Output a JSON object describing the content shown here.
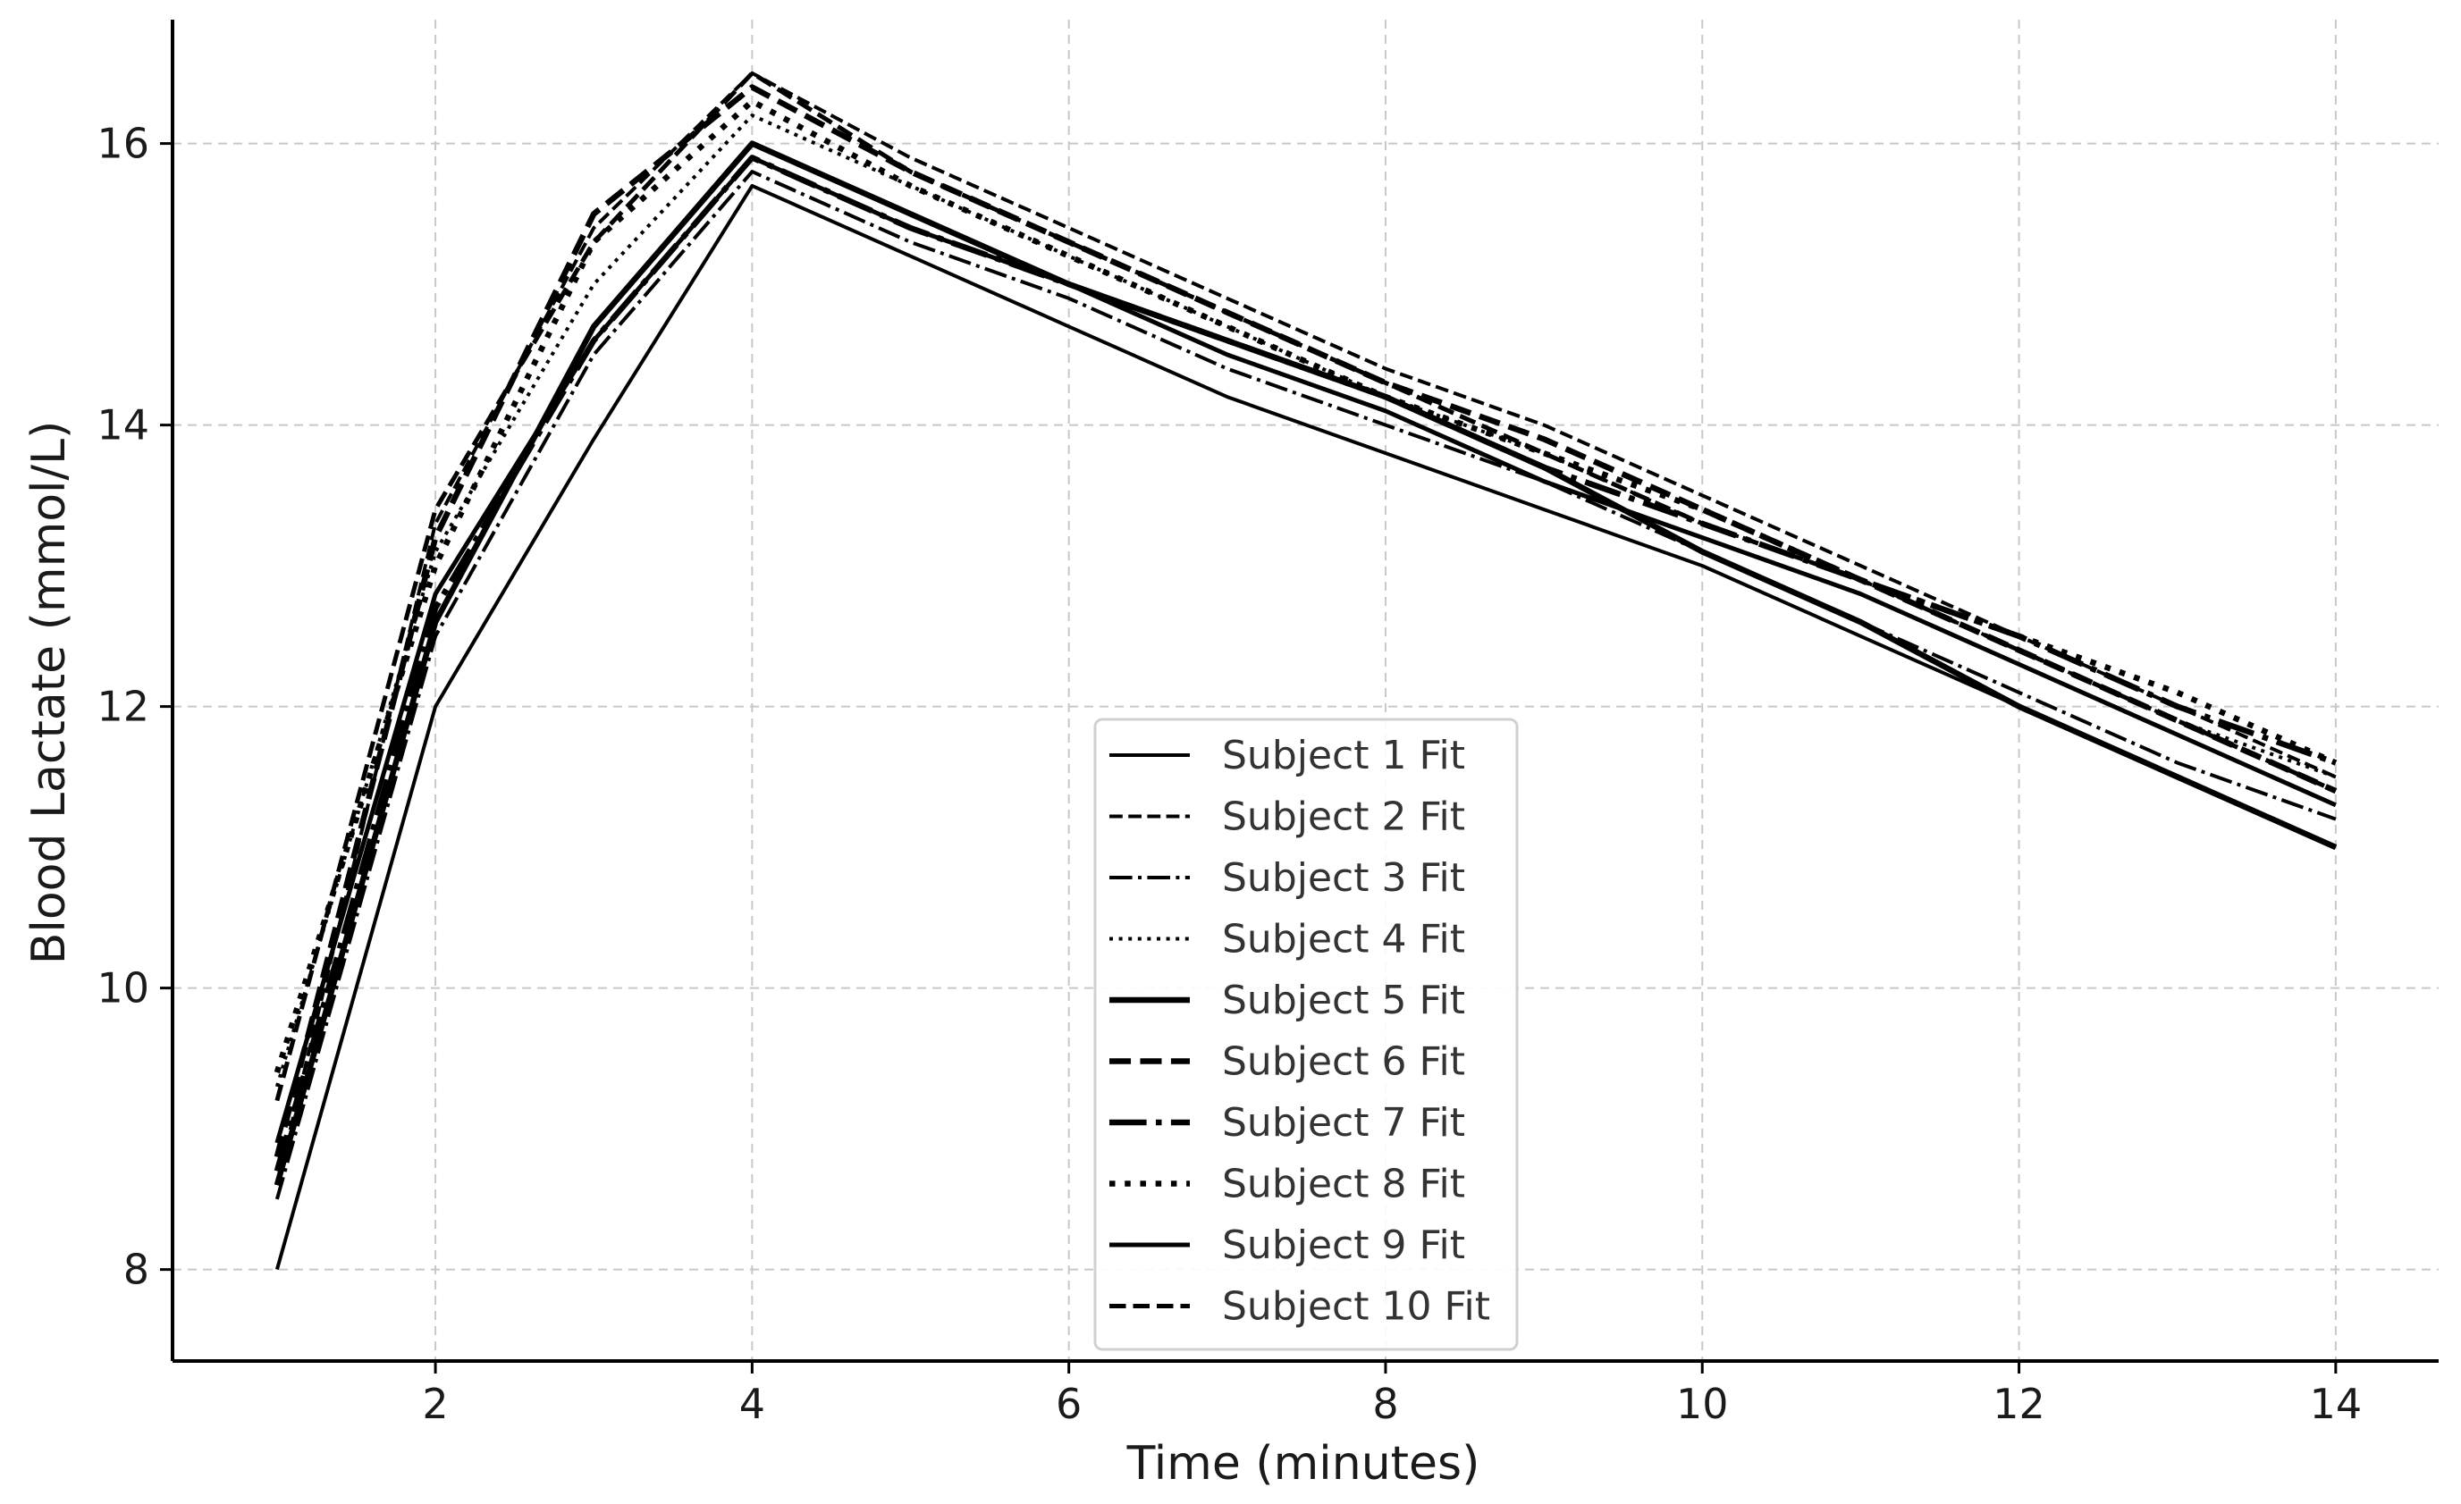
{
  "chart_data": {
    "type": "line",
    "title": "",
    "xlabel": "Time (minutes)",
    "ylabel": "Blood Lactate (mmol/L)",
    "xlim": [
      0.34,
      14.65
    ],
    "ylim": [
      7.35,
      16.88
    ],
    "xticks": [
      2,
      4,
      6,
      8,
      10,
      12,
      14
    ],
    "yticks": [
      8,
      10,
      12,
      14,
      16
    ],
    "grid": true,
    "legend_position": "bottom-center",
    "line_color": "#000000",
    "series": [
      {
        "name": "Subject 1 Fit",
        "style": "solid",
        "width": "thin",
        "x": [
          1,
          2,
          3,
          4,
          5,
          6,
          7,
          8,
          9,
          10,
          11,
          12,
          13,
          14
        ],
        "y": [
          8.0,
          12.0,
          13.9,
          15.7,
          15.2,
          14.7,
          14.2,
          13.8,
          13.4,
          13.0,
          12.5,
          12.0,
          11.5,
          11.0
        ]
      },
      {
        "name": "Subject 2 Fit",
        "style": "dashed",
        "width": "thin",
        "x": [
          1,
          2,
          3,
          4,
          5,
          6,
          7,
          8,
          9,
          10,
          11,
          12,
          13,
          14
        ],
        "y": [
          8.6,
          13.3,
          15.4,
          16.5,
          15.9,
          15.4,
          14.9,
          14.4,
          14.0,
          13.5,
          13.0,
          12.5,
          12.0,
          11.5
        ]
      },
      {
        "name": "Subject 3 Fit",
        "style": "dashdot",
        "width": "thin",
        "x": [
          1,
          2,
          3,
          4,
          5,
          6,
          7,
          8,
          9,
          10,
          11,
          12,
          13,
          14
        ],
        "y": [
          8.5,
          12.5,
          14.5,
          15.8,
          15.3,
          14.9,
          14.4,
          14.0,
          13.6,
          13.1,
          12.6,
          12.1,
          11.6,
          11.2
        ]
      },
      {
        "name": "Subject 4 Fit",
        "style": "dotted",
        "width": "thin",
        "x": [
          1,
          2,
          3,
          4,
          5,
          6,
          7,
          8,
          9,
          10,
          11,
          12,
          13,
          14
        ],
        "y": [
          9.3,
          13.1,
          15.0,
          16.2,
          15.7,
          15.2,
          14.7,
          14.2,
          13.8,
          13.3,
          12.9,
          12.4,
          11.9,
          11.5
        ]
      },
      {
        "name": "Subject 5 Fit",
        "style": "solid",
        "width": "thick",
        "x": [
          1,
          2,
          3,
          4,
          5,
          6,
          7,
          8,
          9,
          10,
          11,
          12,
          13,
          14
        ],
        "y": [
          8.6,
          12.6,
          14.7,
          16.0,
          15.5,
          15.0,
          14.6,
          14.2,
          13.7,
          13.1,
          12.6,
          12.0,
          11.5,
          11.0
        ]
      },
      {
        "name": "Subject 6 Fit",
        "style": "dashed",
        "width": "thick",
        "x": [
          1,
          2,
          3,
          4,
          5,
          6,
          7,
          8,
          9,
          10,
          11,
          12,
          13,
          14
        ],
        "y": [
          8.8,
          13.2,
          15.5,
          16.4,
          15.8,
          15.3,
          14.8,
          14.3,
          13.9,
          13.4,
          12.9,
          12.4,
          11.9,
          11.4
        ]
      },
      {
        "name": "Subject 7 Fit",
        "style": "dashdot",
        "width": "thick",
        "x": [
          1,
          2,
          3,
          4,
          5,
          6,
          7,
          8,
          9,
          10,
          11,
          12,
          13,
          14
        ],
        "y": [
          8.7,
          12.7,
          14.6,
          15.9,
          15.4,
          15.0,
          14.6,
          14.2,
          13.7,
          13.3,
          12.9,
          12.5,
          12.0,
          11.6
        ]
      },
      {
        "name": "Subject 8 Fit",
        "style": "dotted",
        "width": "thick",
        "x": [
          1,
          2,
          3,
          4,
          5,
          6,
          7,
          8,
          9,
          10,
          11,
          12,
          13,
          14
        ],
        "y": [
          9.4,
          13.0,
          15.3,
          16.3,
          15.7,
          15.2,
          14.7,
          14.2,
          13.8,
          13.4,
          12.9,
          12.5,
          12.1,
          11.6
        ]
      },
      {
        "name": "Subject 9 Fit",
        "style": "solid",
        "width": "medium",
        "x": [
          1,
          2,
          3,
          4,
          5,
          6,
          7,
          8,
          9,
          10,
          11,
          12,
          13,
          14
        ],
        "y": [
          8.9,
          12.8,
          14.6,
          15.9,
          15.4,
          15.0,
          14.5,
          14.1,
          13.6,
          13.2,
          12.8,
          12.3,
          11.8,
          11.3
        ]
      },
      {
        "name": "Subject 10 Fit",
        "style": "dashed",
        "width": "medium",
        "x": [
          1,
          2,
          3,
          4,
          5,
          6,
          7,
          8,
          9,
          10,
          11,
          12,
          13,
          14
        ],
        "y": [
          9.2,
          13.4,
          15.3,
          16.5,
          15.8,
          15.3,
          14.8,
          14.3,
          13.8,
          13.3,
          12.9,
          12.4,
          11.9,
          11.4
        ]
      }
    ]
  }
}
